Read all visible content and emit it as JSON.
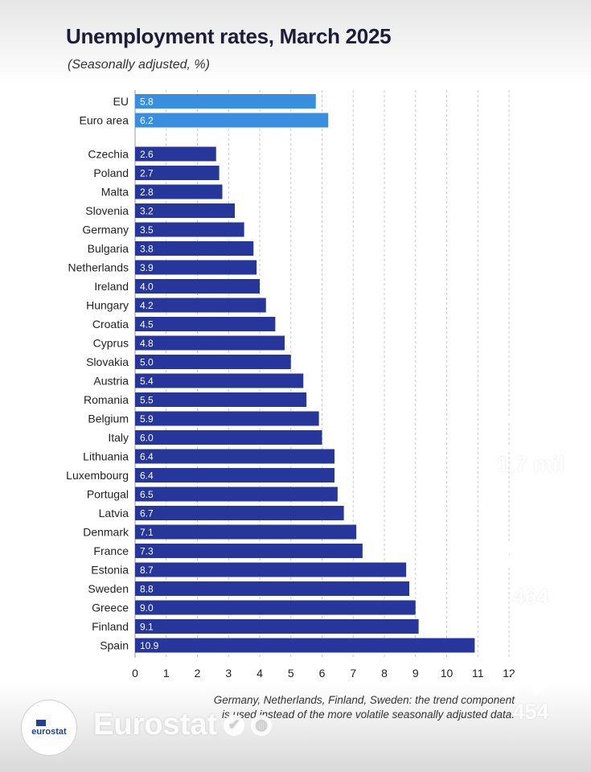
{
  "header": {
    "title": "Unemployment rates, March 2025",
    "subtitle": "(Seasonally adjusted, %)"
  },
  "footnote": {
    "line1": "Germany, Netherlands, Finland, Sweden: the trend component",
    "line2": "is used instead of the more volatile seasonally adjusted data."
  },
  "account": {
    "logo_text": "eurostat",
    "name": "Eurostat",
    "verified_icon": "verified-badge-icon",
    "globe_icon": "globe-icon"
  },
  "actions": {
    "likes": "1,7 mil",
    "comments": "464",
    "shares": "454"
  },
  "colors": {
    "aggregate_bar": "#3a8ee0",
    "country_bar": "#27369a",
    "grid": "#c9c9c9"
  },
  "chart_data": {
    "type": "bar",
    "orientation": "horizontal",
    "title": "Unemployment rates, March 2025",
    "subtitle": "(Seasonally adjusted, %)",
    "xlim": [
      0,
      12
    ],
    "xticks": [
      0,
      1,
      2,
      3,
      4,
      5,
      6,
      7,
      8,
      9,
      10,
      11,
      12
    ],
    "grid": true,
    "aggregates": [
      {
        "label": "EU",
        "value": 5.8,
        "value_label": "5.8"
      },
      {
        "label": "Euro area",
        "value": 6.2,
        "value_label": "6.2"
      }
    ],
    "countries": [
      {
        "label": "Czechia",
        "value": 2.6,
        "value_label": "2.6"
      },
      {
        "label": "Poland",
        "value": 2.7,
        "value_label": "2.7"
      },
      {
        "label": "Malta",
        "value": 2.8,
        "value_label": "2.8"
      },
      {
        "label": "Slovenia",
        "value": 3.2,
        "value_label": "3.2"
      },
      {
        "label": "Germany",
        "value": 3.5,
        "value_label": "3.5"
      },
      {
        "label": "Bulgaria",
        "value": 3.8,
        "value_label": "3.8"
      },
      {
        "label": "Netherlands",
        "value": 3.9,
        "value_label": "3.9"
      },
      {
        "label": "Ireland",
        "value": 4.0,
        "value_label": "4.0"
      },
      {
        "label": "Hungary",
        "value": 4.2,
        "value_label": "4.2"
      },
      {
        "label": "Croatia",
        "value": 4.5,
        "value_label": "4.5"
      },
      {
        "label": "Cyprus",
        "value": 4.8,
        "value_label": "4.8"
      },
      {
        "label": "Slovakia",
        "value": 5.0,
        "value_label": "5.0"
      },
      {
        "label": "Austria",
        "value": 5.4,
        "value_label": "5.4"
      },
      {
        "label": "Romania",
        "value": 5.5,
        "value_label": "5.5"
      },
      {
        "label": "Belgium",
        "value": 5.9,
        "value_label": "5.9"
      },
      {
        "label": "Italy",
        "value": 6.0,
        "value_label": "6.0"
      },
      {
        "label": "Lithuania",
        "value": 6.4,
        "value_label": "6.4"
      },
      {
        "label": "Luxembourg",
        "value": 6.4,
        "value_label": "6.4"
      },
      {
        "label": "Portugal",
        "value": 6.5,
        "value_label": "6.5"
      },
      {
        "label": "Latvia",
        "value": 6.7,
        "value_label": "6.7"
      },
      {
        "label": "Denmark",
        "value": 7.1,
        "value_label": "7.1"
      },
      {
        "label": "France",
        "value": 7.3,
        "value_label": "7.3"
      },
      {
        "label": "Estonia",
        "value": 8.7,
        "value_label": "8.7"
      },
      {
        "label": "Sweden",
        "value": 8.8,
        "value_label": "8.8"
      },
      {
        "label": "Greece",
        "value": 9.0,
        "value_label": "9.0"
      },
      {
        "label": "Finland",
        "value": 9.1,
        "value_label": "9.1"
      },
      {
        "label": "Spain",
        "value": 10.9,
        "value_label": "10.9"
      }
    ]
  }
}
